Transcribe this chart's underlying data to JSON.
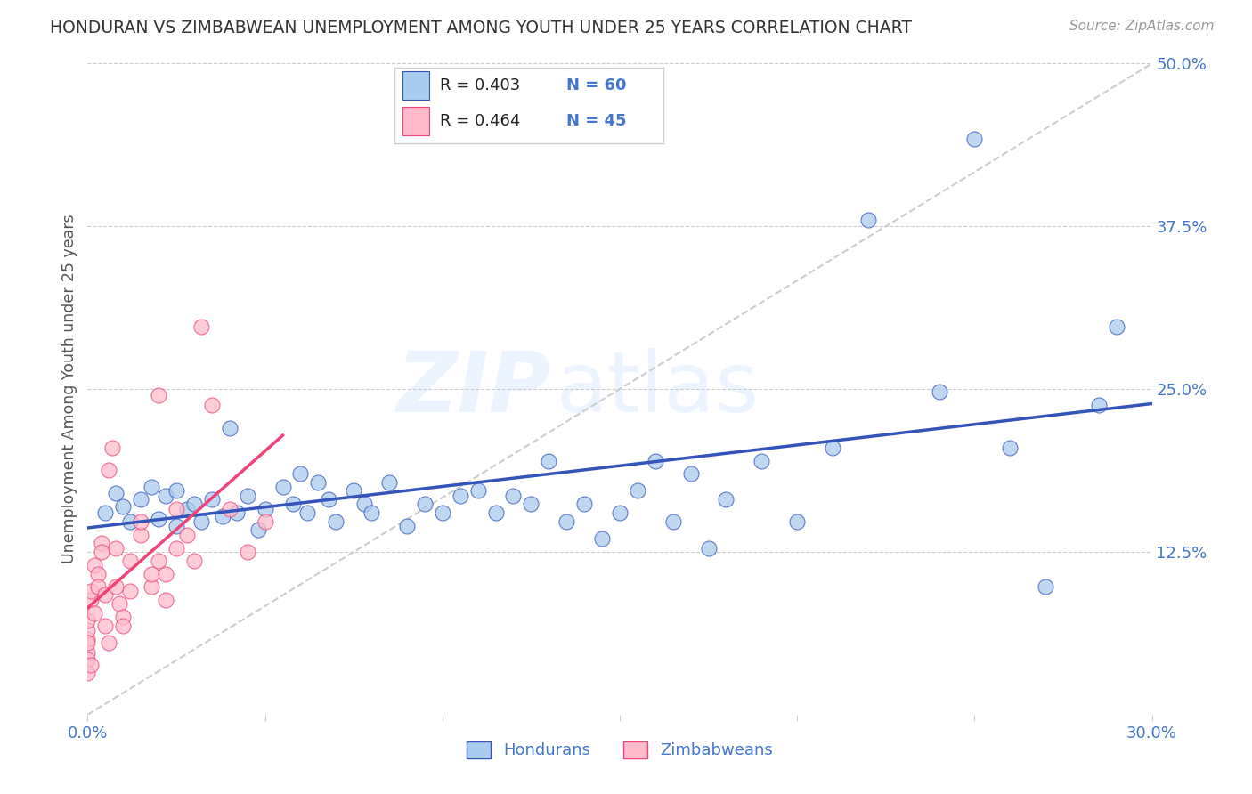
{
  "title": "HONDURAN VS ZIMBABWEAN UNEMPLOYMENT AMONG YOUTH UNDER 25 YEARS CORRELATION CHART",
  "source": "Source: ZipAtlas.com",
  "ylabel": "Unemployment Among Youth under 25 years",
  "xlim": [
    0.0,
    0.3
  ],
  "ylim": [
    0.0,
    0.5
  ],
  "watermark_zip": "ZIP",
  "watermark_atlas": "atlas",
  "blue_r": "0.403",
  "blue_n": "60",
  "pink_r": "0.464",
  "pink_n": "45",
  "legend_blue_label": "Hondurans",
  "legend_pink_label": "Zimbabweans",
  "blue_scatter_color": "#AACCEE",
  "pink_scatter_color": "#FFBBCC",
  "blue_line_color": "#3355BB",
  "pink_line_color": "#EE4477",
  "title_color": "#333333",
  "axis_tick_color": "#4477CC",
  "background_color": "#FFFFFF",
  "grid_color": "#CCCCCC",
  "honduran_x": [
    0.005,
    0.008,
    0.01,
    0.012,
    0.015,
    0.018,
    0.02,
    0.022,
    0.025,
    0.025,
    0.028,
    0.03,
    0.032,
    0.035,
    0.038,
    0.04,
    0.042,
    0.045,
    0.048,
    0.05,
    0.055,
    0.058,
    0.06,
    0.062,
    0.065,
    0.068,
    0.07,
    0.075,
    0.078,
    0.08,
    0.085,
    0.09,
    0.095,
    0.1,
    0.105,
    0.11,
    0.115,
    0.12,
    0.125,
    0.13,
    0.135,
    0.14,
    0.145,
    0.15,
    0.155,
    0.16,
    0.165,
    0.17,
    0.175,
    0.18,
    0.19,
    0.2,
    0.21,
    0.22,
    0.24,
    0.25,
    0.26,
    0.27,
    0.285,
    0.29
  ],
  "honduran_y": [
    0.155,
    0.17,
    0.16,
    0.148,
    0.165,
    0.175,
    0.15,
    0.168,
    0.145,
    0.172,
    0.158,
    0.162,
    0.148,
    0.165,
    0.152,
    0.22,
    0.155,
    0.168,
    0.142,
    0.158,
    0.175,
    0.162,
    0.185,
    0.155,
    0.178,
    0.165,
    0.148,
    0.172,
    0.162,
    0.155,
    0.178,
    0.145,
    0.162,
    0.155,
    0.168,
    0.172,
    0.155,
    0.168,
    0.162,
    0.195,
    0.148,
    0.162,
    0.135,
    0.155,
    0.172,
    0.195,
    0.148,
    0.185,
    0.128,
    0.165,
    0.195,
    0.148,
    0.205,
    0.38,
    0.248,
    0.442,
    0.205,
    0.098,
    0.238,
    0.298
  ],
  "zimbabwean_x": [
    0.0,
    0.0,
    0.0,
    0.0,
    0.0,
    0.0,
    0.0,
    0.001,
    0.001,
    0.001,
    0.002,
    0.002,
    0.003,
    0.003,
    0.004,
    0.004,
    0.005,
    0.005,
    0.006,
    0.006,
    0.007,
    0.008,
    0.008,
    0.009,
    0.01,
    0.01,
    0.012,
    0.012,
    0.015,
    0.015,
    0.018,
    0.018,
    0.02,
    0.02,
    0.022,
    0.022,
    0.025,
    0.025,
    0.028,
    0.03,
    0.032,
    0.035,
    0.04,
    0.045,
    0.05
  ],
  "zimbabwean_y": [
    0.048,
    0.058,
    0.065,
    0.042,
    0.055,
    0.032,
    0.072,
    0.088,
    0.095,
    0.038,
    0.115,
    0.078,
    0.108,
    0.098,
    0.132,
    0.125,
    0.092,
    0.068,
    0.055,
    0.188,
    0.205,
    0.128,
    0.098,
    0.085,
    0.075,
    0.068,
    0.095,
    0.118,
    0.138,
    0.148,
    0.098,
    0.108,
    0.245,
    0.118,
    0.108,
    0.088,
    0.128,
    0.158,
    0.138,
    0.118,
    0.298,
    0.238,
    0.158,
    0.125,
    0.148
  ]
}
